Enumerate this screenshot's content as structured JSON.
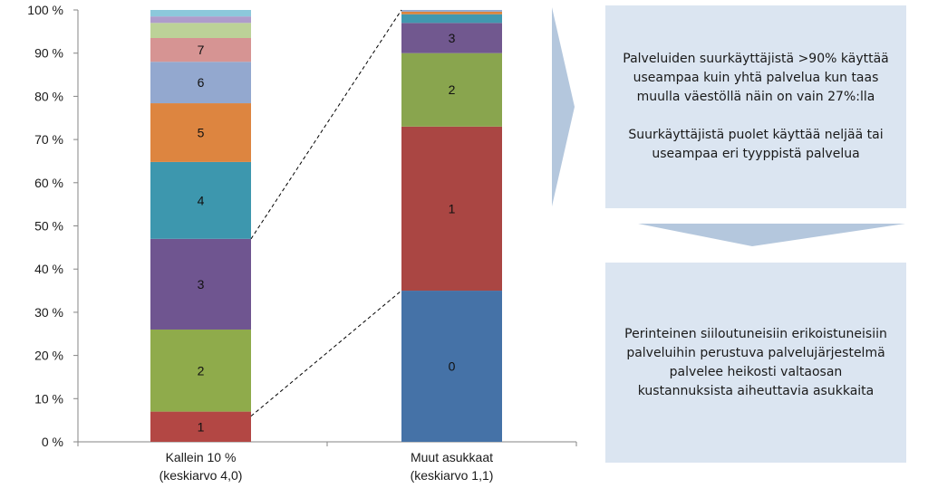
{
  "chart_data": {
    "type": "bar",
    "stacked": true,
    "ylim": [
      0,
      100
    ],
    "y_ticks": [
      "0 %",
      "10 %",
      "20 %",
      "30 %",
      "40 %",
      "50 %",
      "60 %",
      "70 %",
      "80 %",
      "90 %",
      "100 %"
    ],
    "categories": [
      "Kallein 10 %\n(keskiarvo 4,0)",
      "Muut asukkaat\n(keskiarvo 1,1)"
    ],
    "bars": [
      {
        "segments": [
          {
            "label": "1",
            "value": 7,
            "color": "#b34744"
          },
          {
            "label": "2",
            "value": 19,
            "color": "#8fab4b"
          },
          {
            "label": "3",
            "value": 21,
            "color": "#6f5590"
          },
          {
            "label": "4",
            "value": 17.8,
            "color": "#3d97ae"
          },
          {
            "label": "5",
            "value": 13.6,
            "color": "#dd8540"
          },
          {
            "label": "6",
            "value": 9.6,
            "color": "#93a8cf"
          },
          {
            "label": "7",
            "value": 5.5,
            "color": "#d69493"
          },
          {
            "label": "",
            "value": 3.5,
            "color": "#bcd298"
          },
          {
            "label": "",
            "value": 1.5,
            "color": "#ae9ccb"
          },
          {
            "label": "",
            "value": 1.5,
            "color": "#8cc8db"
          }
        ]
      },
      {
        "segments": [
          {
            "label": "0",
            "value": 35,
            "color": "#4572a7"
          },
          {
            "label": "1",
            "value": 38,
            "color": "#aa4643"
          },
          {
            "label": "2",
            "value": 17,
            "color": "#89a54e"
          },
          {
            "label": "3",
            "value": 7,
            "color": "#71588f"
          },
          {
            "label": "",
            "value": 2,
            "color": "#4198af"
          },
          {
            "label": "",
            "value": 0.6,
            "color": "#db843d"
          },
          {
            "label": "",
            "value": 0.4,
            "color": "#93a9cf"
          }
        ]
      }
    ]
  },
  "panels": {
    "top": {
      "para1": "Palveluiden suurkäyttäjistä >90% käyttää useampaa kuin yhtä palvelua kun taas muulla väestöllä näin on vain 27%:lla",
      "para2": "Suurkäyttäjistä puolet käyttää neljää tai useampaa eri tyyppistä palvelua"
    },
    "bottom": {
      "para1": "Perinteinen siiloutuneisiin erikoistuneisiin palveluihin perustuva palvelujärjestelmä palvelee heikosti valtaosan kustannuksista aiheuttavia asukkaita"
    }
  },
  "colors": {
    "panel_bg": "#dbe5f1",
    "arrow": "#b4c7dd"
  }
}
